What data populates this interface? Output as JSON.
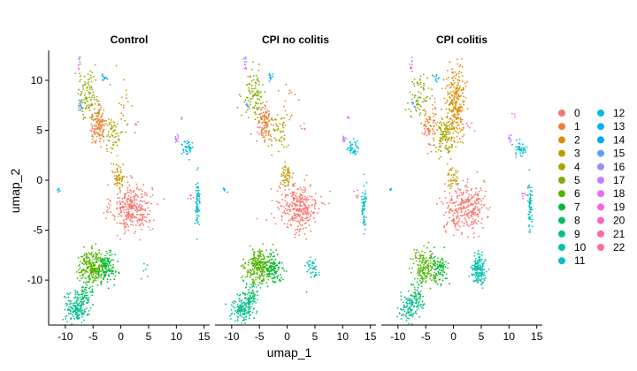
{
  "chart_data": {
    "type": "scatter",
    "xlabel": "umap_1",
    "ylabel": "umap_2",
    "xlim": [
      -13,
      16
    ],
    "ylim": [
      -14.5,
      13
    ],
    "x_ticks": [
      -10,
      -5,
      0,
      5,
      10,
      15
    ],
    "y_ticks": [
      -10,
      -5,
      0,
      5,
      10
    ],
    "x_tick_labels": [
      "-10",
      "-5",
      "0",
      "5",
      "10",
      "15"
    ],
    "y_tick_labels": [
      "-10",
      "-5",
      "0",
      "5",
      "10"
    ],
    "grid": false,
    "legend_position": "right",
    "panels": [
      {
        "title": "Control"
      },
      {
        "title": "CPI no colitis"
      },
      {
        "title": "CPI colitis"
      }
    ],
    "clusters": [
      {
        "name": "0",
        "color": "#F8766D"
      },
      {
        "name": "1",
        "color": "#EB8335"
      },
      {
        "name": "2",
        "color": "#DA8F00"
      },
      {
        "name": "3",
        "color": "#C49A00"
      },
      {
        "name": "4",
        "color": "#A9A400"
      },
      {
        "name": "5",
        "color": "#86AC00"
      },
      {
        "name": "6",
        "color": "#53B400"
      },
      {
        "name": "7",
        "color": "#00BA38"
      },
      {
        "name": "8",
        "color": "#00BE67"
      },
      {
        "name": "9",
        "color": "#00C08D"
      },
      {
        "name": "10",
        "color": "#00C1AD"
      },
      {
        "name": "11",
        "color": "#00BFC4"
      },
      {
        "name": "12",
        "color": "#00BCDC"
      },
      {
        "name": "13",
        "color": "#00B4F0"
      },
      {
        "name": "14",
        "color": "#00A9FF"
      },
      {
        "name": "15",
        "color": "#619CFF"
      },
      {
        "name": "16",
        "color": "#9590FF"
      },
      {
        "name": "17",
        "color": "#C77CFF"
      },
      {
        "name": "18",
        "color": "#E76BF3"
      },
      {
        "name": "19",
        "color": "#F962DD"
      },
      {
        "name": "20",
        "color": "#FF61C3"
      },
      {
        "name": "21",
        "color": "#FF65A8"
      },
      {
        "name": "22",
        "color": "#FF6C91"
      }
    ],
    "cluster_regions": [
      {
        "cluster": "0",
        "cx": 2.0,
        "cy": -2.8,
        "sx": 2.4,
        "sy": 1.6,
        "n": [
          320,
          300,
          300
        ]
      },
      {
        "cluster": "1",
        "cx": -4.0,
        "cy": 5.6,
        "sx": 1.0,
        "sy": 1.4,
        "n": [
          130,
          110,
          70
        ]
      },
      {
        "cluster": "2",
        "cx": 0.5,
        "cy": 7.8,
        "sx": 1.2,
        "sy": 2.2,
        "n": [
          20,
          15,
          260
        ]
      },
      {
        "cluster": "3",
        "cx": -0.3,
        "cy": 0.4,
        "sx": 0.7,
        "sy": 0.9,
        "n": [
          60,
          60,
          40
        ]
      },
      {
        "cluster": "4",
        "cx": -1.5,
        "cy": 4.6,
        "sx": 1.2,
        "sy": 1.2,
        "n": [
          60,
          50,
          130
        ]
      },
      {
        "cluster": "5",
        "cx": -6.0,
        "cy": 8.5,
        "sx": 1.3,
        "sy": 1.6,
        "n": [
          100,
          100,
          70
        ]
      },
      {
        "cluster": "6",
        "cx": -5.0,
        "cy": -8.7,
        "sx": 1.7,
        "sy": 1.1,
        "n": [
          260,
          260,
          170
        ]
      },
      {
        "cluster": "7",
        "cx": -2.5,
        "cy": -8.8,
        "sx": 1.0,
        "sy": 1.0,
        "n": [
          120,
          110,
          80
        ]
      },
      {
        "cluster": "8",
        "cx": -6.5,
        "cy": -11.5,
        "sx": 1.0,
        "sy": 1.0,
        "n": [
          70,
          70,
          60
        ]
      },
      {
        "cluster": "9",
        "cx": -8.0,
        "cy": -12.8,
        "sx": 1.3,
        "sy": 0.9,
        "n": [
          160,
          150,
          110
        ]
      },
      {
        "cluster": "10",
        "cx": 4.5,
        "cy": -9.0,
        "sx": 0.8,
        "sy": 1.0,
        "n": [
          6,
          40,
          160
        ]
      },
      {
        "cluster": "11",
        "cx": 13.8,
        "cy": -2.5,
        "sx": 0.3,
        "sy": 1.5,
        "n": [
          70,
          60,
          60
        ]
      },
      {
        "cluster": "12",
        "cx": 12.0,
        "cy": 3.2,
        "sx": 0.7,
        "sy": 0.5,
        "n": [
          40,
          40,
          40
        ]
      },
      {
        "cluster": "13",
        "cx": -3.0,
        "cy": 10.3,
        "sx": 0.4,
        "sy": 0.3,
        "n": [
          12,
          10,
          10
        ]
      },
      {
        "cluster": "14",
        "cx": -11.3,
        "cy": -1.0,
        "sx": 0.2,
        "sy": 0.2,
        "n": [
          6,
          6,
          5
        ]
      },
      {
        "cluster": "15",
        "cx": -7.2,
        "cy": 7.5,
        "sx": 0.3,
        "sy": 0.3,
        "n": [
          12,
          6,
          8
        ]
      },
      {
        "cluster": "16",
        "cx": -7.5,
        "cy": 12.0,
        "sx": 0.2,
        "sy": 0.3,
        "n": [
          6,
          6,
          5
        ]
      },
      {
        "cluster": "17",
        "cx": 10.2,
        "cy": 4.2,
        "sx": 0.3,
        "sy": 0.3,
        "n": [
          12,
          10,
          10
        ]
      },
      {
        "cluster": "18",
        "cx": 11.0,
        "cy": 6.3,
        "sx": 0.2,
        "sy": 0.2,
        "n": [
          3,
          3,
          3
        ]
      },
      {
        "cluster": "19",
        "cx": -7.6,
        "cy": 11.3,
        "sx": 0.2,
        "sy": 0.3,
        "n": [
          5,
          5,
          5
        ]
      },
      {
        "cluster": "20",
        "cx": 12.5,
        "cy": -1.5,
        "sx": 0.3,
        "sy": 0.4,
        "n": [
          6,
          6,
          6
        ]
      },
      {
        "cluster": "21",
        "cx": 3.0,
        "cy": 5.5,
        "sx": 0.5,
        "sy": 0.4,
        "n": [
          5,
          5,
          5
        ]
      },
      {
        "cluster": "22",
        "cx": -5.0,
        "cy": 5.0,
        "sx": 0.4,
        "sy": 0.4,
        "n": [
          5,
          5,
          5
        ]
      }
    ]
  }
}
